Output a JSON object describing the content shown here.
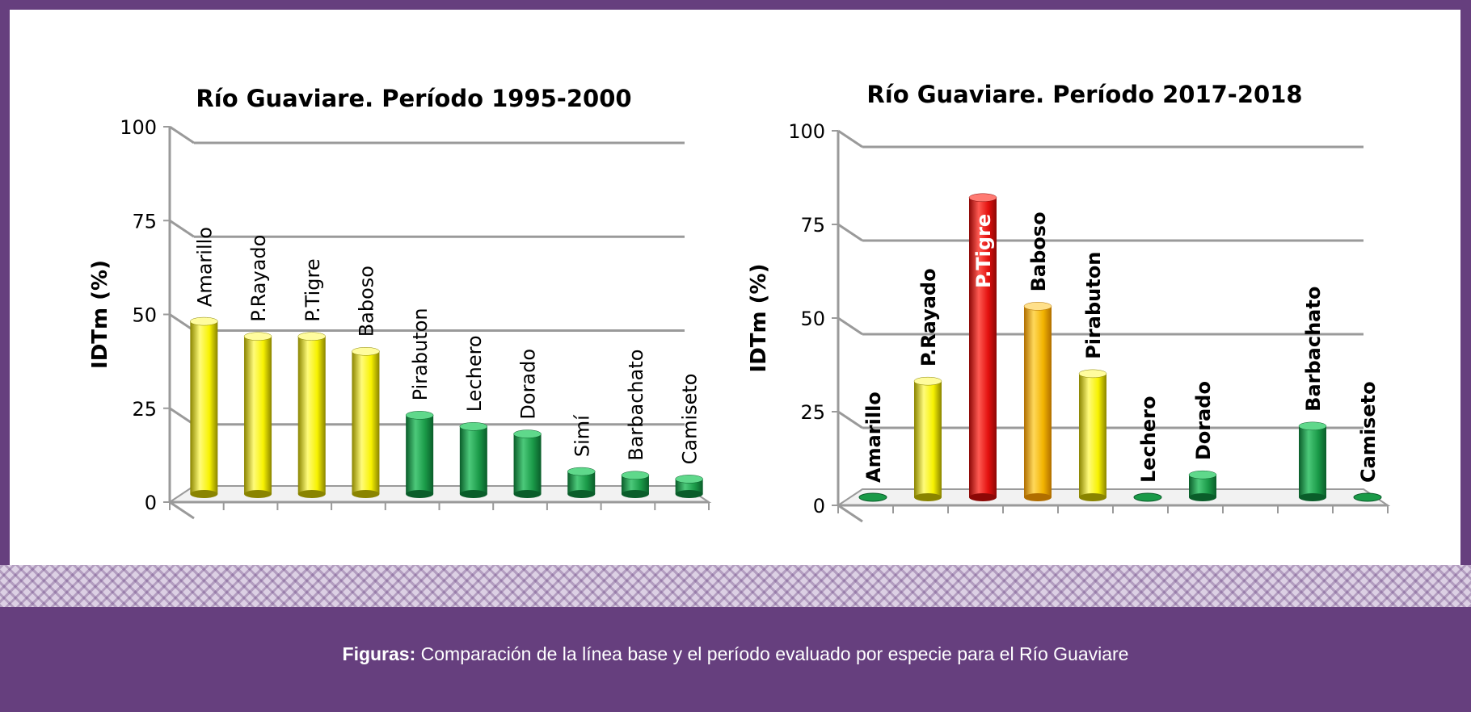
{
  "caption": {
    "label": "Figuras:",
    "text": " Comparación de la línea base y el período evaluado por especie para el Río Guaviare"
  },
  "colors": {
    "frame": "#663f7e",
    "yellow": "#f7f200",
    "green": "#1a9a48",
    "red": "#e3100e",
    "orange": "#f2b300"
  },
  "chart_data": [
    {
      "type": "bar",
      "title": "Río Guaviare.  Período 1995-2000",
      "ylabel": "IDTm (%)",
      "xlabel": "",
      "ylim": [
        0,
        100
      ],
      "yticks": [
        0,
        25,
        50,
        75,
        100
      ],
      "grid": true,
      "style": "3d-cylinder",
      "label_weight": "normal",
      "categories": [
        "Amarillo",
        "P.Rayado",
        "P.Tigre",
        "Baboso",
        "Pirabuton",
        "Lechero",
        "Dorado",
        "Simí",
        "Barbachato",
        "Camiseto"
      ],
      "values": [
        46,
        42,
        42,
        38,
        21,
        18,
        16,
        6,
        5,
        4
      ],
      "bar_colors": [
        "yellow",
        "yellow",
        "yellow",
        "yellow",
        "green",
        "green",
        "green",
        "green",
        "green",
        "green"
      ]
    },
    {
      "type": "bar",
      "title": "Río Guaviare.  Período 2017-2018",
      "ylabel": "IDTm (%)",
      "xlabel": "",
      "ylim": [
        0,
        100
      ],
      "yticks": [
        0,
        25,
        50,
        75,
        100
      ],
      "grid": true,
      "style": "3d-cylinder",
      "label_weight": "bold",
      "categories": [
        "Amarillo",
        "P.Rayado",
        "P.Tigre",
        "Baboso",
        "Pirabuton",
        "Lechero",
        "Dorado",
        "",
        "Barbachato",
        "Camiseto"
      ],
      "values": [
        0,
        31,
        80,
        51,
        33,
        0,
        6,
        null,
        19,
        0
      ],
      "bar_colors": [
        "green",
        "yellow",
        "red",
        "orange",
        "yellow",
        "green",
        "green",
        "green",
        "green",
        "green"
      ],
      "inside_label_index": 2
    }
  ]
}
